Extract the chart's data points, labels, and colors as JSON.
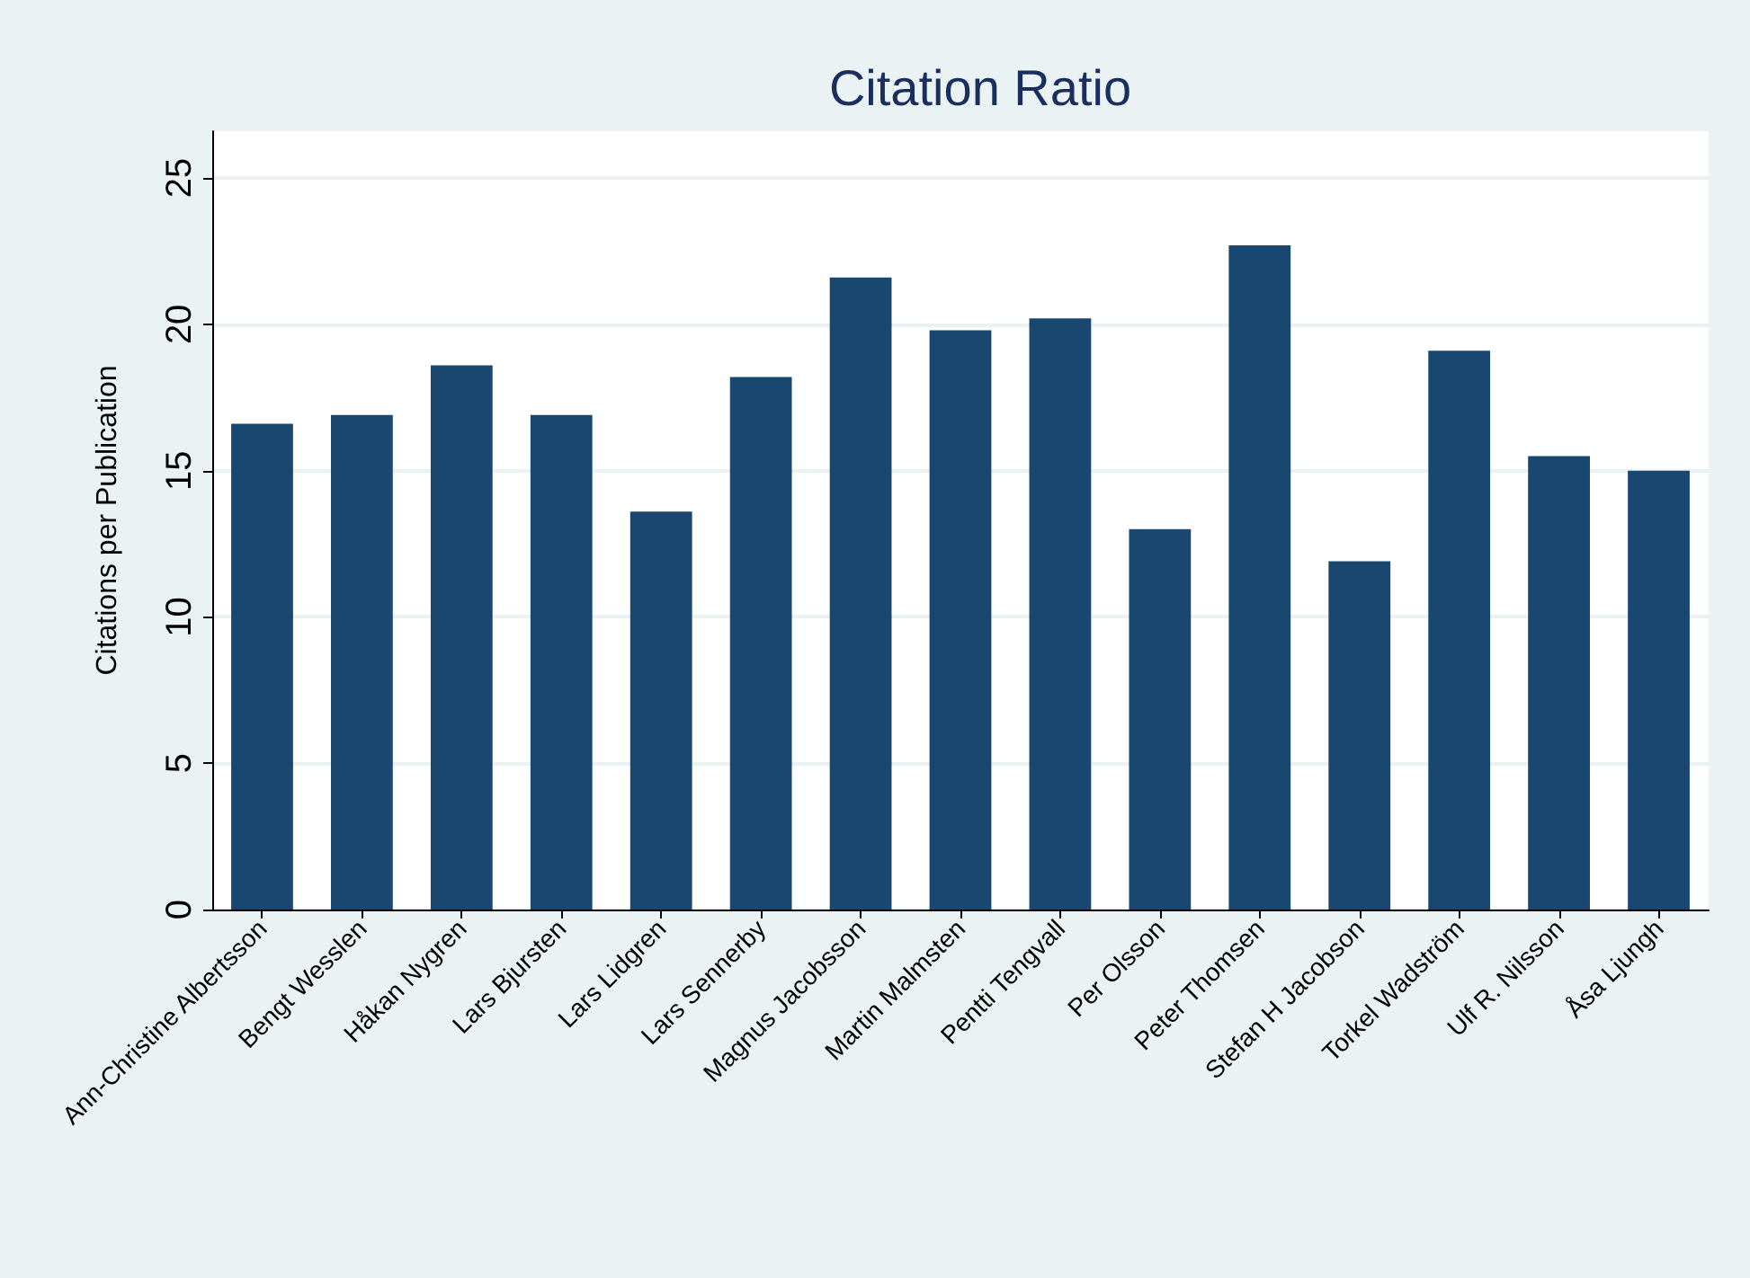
{
  "chart_data": {
    "type": "bar",
    "title": "Citation Ratio",
    "ylabel": "Citations per Publication",
    "categories": [
      "Ann-Christine Albertsson",
      "Bengt Wesslen",
      "Håkan Nygren",
      "Lars Bjursten",
      "Lars Lidgren",
      "Lars Sennerby",
      "Magnus Jacobsson",
      "Martin Malmsten",
      "Pentti Tengvall",
      "Per Olsson",
      "Peter Thomsen",
      "Stefan H Jacobson",
      "Torkel Wadström",
      "Ulf R. Nilsson",
      "Åsa Ljungh"
    ],
    "values": [
      16.6,
      16.9,
      18.6,
      16.9,
      13.6,
      18.2,
      21.6,
      19.8,
      20.2,
      13.0,
      22.7,
      11.9,
      19.1,
      15.5,
      15.0
    ],
    "color": "#1a476f",
    "ylim": [
      0,
      26.6
    ],
    "yticks": [
      0,
      5,
      10,
      15,
      20,
      25
    ],
    "grid": "y"
  }
}
